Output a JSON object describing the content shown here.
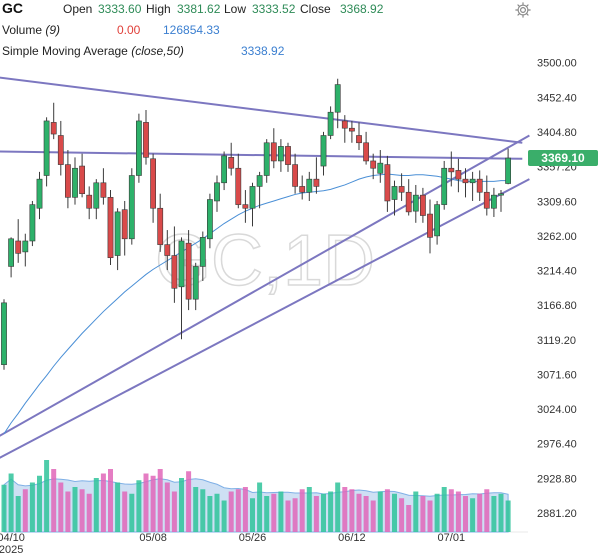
{
  "header": {
    "symbol": "GC",
    "open_label": "Open",
    "open_value": "3333.60",
    "high_label": "High",
    "high_value": "3381.62",
    "low_label": "Low",
    "low_value": "3333.52",
    "close_label": "Close",
    "close_value": "3368.92",
    "volume_label": "Volume",
    "volume_param": "(9)",
    "volume_value_a": "0.00",
    "volume_value_b": "126854.33",
    "sma_label": "Simple Moving Average",
    "sma_param": "(close,50)",
    "sma_value": "3338.92",
    "settings_icon": "gear-icon"
  },
  "watermark": "GC,1D",
  "colors": {
    "up": "#2db16a",
    "down": "#d94a4a",
    "sma": "#4a8fd6",
    "trendline": "#7c77c0",
    "price_tag": "#3aae6a",
    "volume_area": "#b9d3ef"
  },
  "chart_data": {
    "type": "candlestick",
    "title": "GC",
    "ylim": [
      2855,
      3545
    ],
    "y_ticks": [
      3500.0,
      3452.4,
      3404.8,
      3357.2,
      3309.6,
      3262.0,
      3214.4,
      3166.8,
      3119.2,
      3071.6,
      3024.0,
      2976.4,
      2928.8,
      2881.2
    ],
    "y_tick_labels": [
      "3500.00",
      "3452.40",
      "3404.80",
      "3357.20",
      "3309.60",
      "3262.00",
      "3214.40",
      "3166.80",
      "3119.20",
      "3071.60",
      "3024.00",
      "2976.40",
      "2928.80",
      "2881.20"
    ],
    "x_labels": [
      {
        "text": "04/10",
        "sub": "2025",
        "index": 1
      },
      {
        "text": "05/08",
        "index": 21
      },
      {
        "text": "05/26",
        "index": 35
      },
      {
        "text": "06/12",
        "index": 49
      },
      {
        "text": "07/01",
        "index": 63
      }
    ],
    "last_price": "3369.10",
    "candles": [
      [
        3085,
        3175,
        3078,
        3170
      ],
      [
        3220,
        3260,
        3205,
        3258
      ],
      [
        3255,
        3285,
        3225,
        3238
      ],
      [
        3240,
        3265,
        3220,
        3255
      ],
      [
        3255,
        3310,
        3248,
        3305
      ],
      [
        3300,
        3350,
        3285,
        3340
      ],
      [
        3345,
        3425,
        3330,
        3420
      ],
      [
        3418,
        3445,
        3395,
        3402
      ],
      [
        3400,
        3420,
        3345,
        3360
      ],
      [
        3360,
        3380,
        3300,
        3315
      ],
      [
        3315,
        3370,
        3305,
        3355
      ],
      [
        3358,
        3375,
        3315,
        3320
      ],
      [
        3318,
        3330,
        3285,
        3300
      ],
      [
        3300,
        3340,
        3285,
        3335
      ],
      [
        3335,
        3355,
        3305,
        3315
      ],
      [
        3315,
        3325,
        3222,
        3232
      ],
      [
        3235,
        3300,
        3215,
        3295
      ],
      [
        3298,
        3310,
        3235,
        3258
      ],
      [
        3258,
        3355,
        3250,
        3345
      ],
      [
        3345,
        3430,
        3335,
        3420
      ],
      [
        3418,
        3435,
        3360,
        3370
      ],
      [
        3368,
        3375,
        3280,
        3300
      ],
      [
        3300,
        3320,
        3240,
        3250
      ],
      [
        3250,
        3270,
        3215,
        3235
      ],
      [
        3235,
        3275,
        3170,
        3190
      ],
      [
        3192,
        3260,
        3120,
        3255
      ],
      [
        3252,
        3270,
        3160,
        3175
      ],
      [
        3175,
        3225,
        3160,
        3220
      ],
      [
        3220,
        3268,
        3200,
        3260
      ],
      [
        3258,
        3320,
        3245,
        3312
      ],
      [
        3310,
        3345,
        3295,
        3335
      ],
      [
        3335,
        3378,
        3325,
        3372
      ],
      [
        3370,
        3390,
        3345,
        3355
      ],
      [
        3355,
        3375,
        3300,
        3305
      ],
      [
        3305,
        3325,
        3280,
        3300
      ],
      [
        3300,
        3335,
        3275,
        3330
      ],
      [
        3330,
        3350,
        3300,
        3345
      ],
      [
        3345,
        3395,
        3335,
        3390
      ],
      [
        3390,
        3410,
        3355,
        3365
      ],
      [
        3365,
        3395,
        3350,
        3385
      ],
      [
        3385,
        3390,
        3350,
        3360
      ],
      [
        3360,
        3375,
        3320,
        3330
      ],
      [
        3330,
        3345,
        3312,
        3322
      ],
      [
        3322,
        3350,
        3310,
        3340
      ],
      [
        3340,
        3370,
        3320,
        3330
      ],
      [
        3358,
        3405,
        3345,
        3400
      ],
      [
        3400,
        3440,
        3395,
        3432
      ],
      [
        3432,
        3478,
        3410,
        3470
      ],
      [
        3420,
        3428,
        3390,
        3410
      ],
      [
        3410,
        3420,
        3390,
        3406
      ],
      [
        3400,
        3418,
        3380,
        3390
      ],
      [
        3390,
        3405,
        3360,
        3365
      ],
      [
        3365,
        3375,
        3340,
        3355
      ],
      [
        3348,
        3380,
        3335,
        3362
      ],
      [
        3360,
        3372,
        3295,
        3310
      ],
      [
        3312,
        3338,
        3290,
        3330
      ],
      [
        3330,
        3348,
        3310,
        3322
      ],
      [
        3322,
        3340,
        3290,
        3295
      ],
      [
        3296,
        3332,
        3280,
        3318
      ],
      [
        3318,
        3328,
        3280,
        3290
      ],
      [
        3292,
        3312,
        3238,
        3260
      ],
      [
        3262,
        3310,
        3250,
        3305
      ],
      [
        3305,
        3365,
        3298,
        3355
      ],
      [
        3355,
        3378,
        3330,
        3350
      ],
      [
        3352,
        3368,
        3322,
        3340
      ],
      [
        3340,
        3355,
        3315,
        3335
      ],
      [
        3335,
        3350,
        3310,
        3340
      ],
      [
        3340,
        3352,
        3310,
        3322
      ],
      [
        3322,
        3345,
        3290,
        3300
      ],
      [
        3300,
        3328,
        3288,
        3318
      ],
      [
        3318,
        3325,
        3295,
        3320
      ],
      [
        3334,
        3382,
        3333,
        3369
      ]
    ],
    "sma_values": [
      2990,
      3005,
      3018,
      3032,
      3045,
      3058,
      3070,
      3083,
      3095,
      3106,
      3117,
      3128,
      3138,
      3148,
      3158,
      3167,
      3176,
      3185,
      3193,
      3201,
      3209,
      3216,
      3222,
      3228,
      3234,
      3240,
      3246,
      3252,
      3258,
      3265,
      3272,
      3279,
      3285,
      3291,
      3296,
      3300,
      3304,
      3307,
      3310,
      3313,
      3316,
      3319,
      3321,
      3322,
      3323,
      3324,
      3326,
      3329,
      3332,
      3336,
      3340,
      3343,
      3345,
      3346,
      3347,
      3346,
      3345,
      3345,
      3346,
      3346,
      3345,
      3344,
      3342,
      3340,
      3338,
      3337,
      3337,
      3337,
      3337,
      3337,
      3338,
      3338
    ],
    "volume": [
      105,
      130,
      80,
      95,
      110,
      125,
      160,
      140,
      110,
      90,
      100,
      95,
      85,
      120,
      130,
      140,
      110,
      90,
      85,
      115,
      130,
      125,
      140,
      110,
      90,
      120,
      135,
      100,
      95,
      80,
      85,
      70,
      90,
      95,
      100,
      75,
      110,
      80,
      85,
      90,
      70,
      75,
      95,
      100,
      80,
      85,
      90,
      110,
      100,
      95,
      85,
      80,
      70,
      90,
      95,
      85,
      75,
      60,
      90,
      80,
      70,
      85,
      100,
      95,
      90,
      80,
      75,
      85,
      95,
      80,
      85,
      70
    ],
    "volume_up_flags": [
      true,
      true,
      true,
      false,
      true,
      true,
      true,
      false,
      false,
      false,
      true,
      false,
      false,
      true,
      false,
      false,
      true,
      false,
      true,
      true,
      false,
      false,
      false,
      false,
      false,
      true,
      false,
      true,
      true,
      true,
      true,
      true,
      false,
      false,
      false,
      true,
      true,
      true,
      false,
      true,
      false,
      false,
      false,
      true,
      false,
      true,
      true,
      true,
      false,
      false,
      false,
      false,
      false,
      true,
      false,
      true,
      false,
      false,
      true,
      false,
      false,
      true,
      true,
      false,
      false,
      false,
      true,
      false,
      false,
      true,
      true,
      true
    ],
    "trendlines": [
      {
        "name": "resistance-upper",
        "from": [
          -1,
          3480
        ],
        "to": [
          73,
          3390
        ]
      },
      {
        "name": "horizontal",
        "from": [
          -1,
          3378
        ],
        "to": [
          73,
          3368
        ]
      },
      {
        "name": "rising-upper",
        "from": [
          -1,
          2985
        ],
        "to": [
          74,
          3400
        ]
      },
      {
        "name": "rising-lower",
        "from": [
          -1,
          2955
        ],
        "to": [
          74,
          3340
        ]
      }
    ]
  }
}
